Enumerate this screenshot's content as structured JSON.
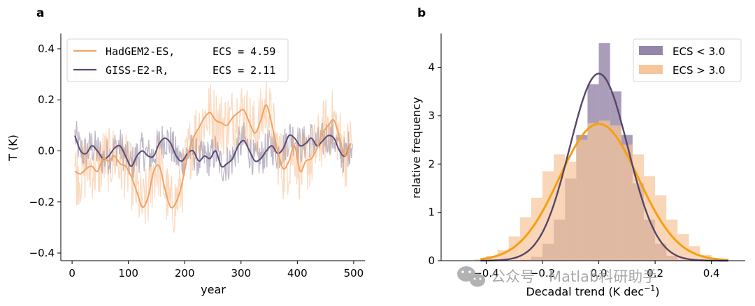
{
  "watermark": {
    "text": "公众号 · Matlab科研助手"
  },
  "chart_data": [
    {
      "panel": "a",
      "type": "line",
      "xlabel": "year",
      "ylabel": "T (K)",
      "xlim": [
        -20,
        520
      ],
      "ylim": [
        -0.43,
        0.46
      ],
      "xticks": [
        0,
        100,
        200,
        300,
        400,
        500
      ],
      "yticks": [
        -0.4,
        -0.2,
        0.0,
        0.2,
        0.4
      ],
      "ytick_labels": [
        "−0.4",
        "−0.2",
        "0.0",
        "0.2",
        "0.4"
      ],
      "series": [
        {
          "name": "HadGEM2-ES",
          "legend_model": "HadGEM2-ES,",
          "legend_ecs": "ECS = 4.59",
          "color": "#f4a261",
          "smooth_x": [
            5,
            15,
            25,
            35,
            45,
            55,
            65,
            75,
            85,
            95,
            105,
            115,
            125,
            135,
            145,
            155,
            165,
            175,
            185,
            195,
            205,
            215,
            225,
            235,
            245,
            255,
            265,
            275,
            285,
            295,
            305,
            315,
            325,
            335,
            345,
            355,
            365,
            375,
            385,
            395,
            405,
            415,
            425,
            435,
            445,
            455,
            465,
            475,
            485,
            495
          ],
          "smooth_y": [
            -0.08,
            -0.09,
            -0.07,
            -0.06,
            -0.08,
            -0.03,
            -0.04,
            -0.02,
            -0.05,
            -0.06,
            -0.1,
            -0.16,
            -0.22,
            -0.18,
            -0.08,
            -0.06,
            -0.15,
            -0.22,
            -0.2,
            -0.13,
            -0.02,
            0.05,
            0.09,
            0.13,
            0.15,
            0.12,
            0.11,
            0.1,
            0.13,
            0.15,
            0.16,
            0.11,
            0.07,
            0.12,
            0.18,
            0.1,
            0.0,
            -0.07,
            -0.04,
            0.02,
            -0.08,
            -0.04,
            -0.03,
            0.01,
            0.07,
            0.1,
            0.12,
            0.05,
            -0.02,
            0.03
          ]
        },
        {
          "name": "GISS-E2-R",
          "legend_model": "GISS-E2-R,",
          "legend_ecs": "ECS = 2.11",
          "color": "#5b4a72",
          "smooth_x": [
            5,
            15,
            25,
            35,
            45,
            55,
            65,
            75,
            85,
            95,
            105,
            115,
            125,
            135,
            145,
            155,
            165,
            175,
            185,
            195,
            205,
            215,
            225,
            235,
            245,
            255,
            265,
            275,
            285,
            295,
            305,
            315,
            325,
            335,
            345,
            355,
            365,
            375,
            385,
            395,
            405,
            415,
            425,
            435,
            445,
            455,
            465,
            475,
            485,
            495
          ],
          "smooth_y": [
            0.06,
            0.0,
            -0.01,
            0.02,
            0.0,
            -0.03,
            -0.02,
            0.01,
            0.02,
            -0.02,
            -0.06,
            -0.02,
            0.0,
            -0.02,
            -0.02,
            0.03,
            0.05,
            0.03,
            -0.02,
            -0.04,
            -0.01,
            0.0,
            -0.04,
            -0.02,
            -0.03,
            0.0,
            -0.06,
            -0.05,
            -0.03,
            0.02,
            0.04,
            0.0,
            -0.04,
            -0.03,
            0.0,
            0.02,
            -0.01,
            0.01,
            0.06,
            0.05,
            0.02,
            0.03,
            0.05,
            0.02,
            0.04,
            0.06,
            0.05,
            0.0,
            -0.02,
            0.03
          ]
        }
      ]
    },
    {
      "panel": "b",
      "type": "bar",
      "xlabel": "Decadal trend (K dec",
      "xlabel_sup": "−1",
      "xlabel_end": ")",
      "ylabel": "relative frequency",
      "xlim": [
        -0.56,
        0.52
      ],
      "ylim": [
        0,
        4.7
      ],
      "xticks": [
        -0.4,
        -0.2,
        0.0,
        0.2,
        0.4
      ],
      "xtick_labels": [
        "−0.4",
        "−0.2",
        "0.0",
        "0.2",
        "0.4"
      ],
      "yticks": [
        0,
        1,
        2,
        3,
        4
      ],
      "ytick_labels": [
        "0",
        "1",
        "2",
        "3",
        "4"
      ],
      "bin_edges": [
        -0.44,
        -0.4,
        -0.36,
        -0.32,
        -0.28,
        -0.24,
        -0.2,
        -0.16,
        -0.12,
        -0.08,
        -0.04,
        0.0,
        0.04,
        0.08,
        0.12,
        0.16,
        0.2,
        0.24,
        0.28,
        0.32,
        0.36,
        0.4,
        0.44
      ],
      "series": [
        {
          "name": "ECS < 3.0",
          "color": "#9585a8",
          "values": [
            0,
            0,
            0,
            0,
            0.02,
            0.08,
            0.35,
            0.85,
            1.7,
            2.6,
            3.65,
            4.5,
            3.5,
            2.6,
            1.6,
            0.85,
            0.35,
            0.1,
            0.02,
            0,
            0,
            0
          ],
          "fit_mean": 0.0,
          "fit_peak": 3.87,
          "fit_sigma": 0.103,
          "fit_color": "#574469"
        },
        {
          "name": "ECS > 3.0",
          "color": "#f7c59a",
          "values": [
            0.03,
            0.1,
            0.22,
            0.5,
            0.9,
            1.3,
            1.85,
            2.2,
            2.05,
            2.5,
            2.85,
            2.9,
            2.8,
            2.4,
            2.2,
            1.75,
            1.35,
            0.85,
            0.55,
            0.3,
            0.12,
            0.05
          ],
          "fit_mean": 0.0,
          "fit_peak": 2.83,
          "fit_sigma": 0.14,
          "fit_color": "#f5a00f"
        }
      ]
    }
  ]
}
